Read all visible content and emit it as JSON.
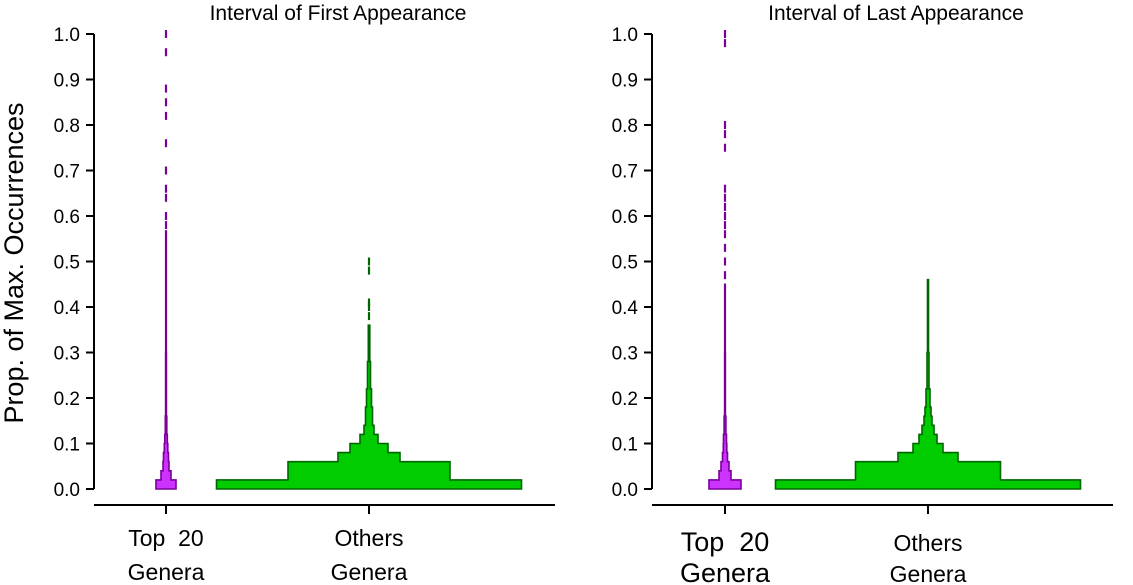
{
  "figure": {
    "ylabel": "Prop. of Max. Occurrences"
  },
  "chart_data": [
    {
      "type": "violin-histogram",
      "title": "Interval of First Appearance",
      "ylim": [
        0,
        1.0
      ],
      "yticks": [
        "0.0",
        "0.1",
        "0.2",
        "0.3",
        "0.4",
        "0.5",
        "0.6",
        "0.7",
        "0.8",
        "0.9",
        "1.0"
      ],
      "categories": [
        {
          "name": "Top 20 Genera",
          "label_lines": [
            "Top  20",
            "Genera"
          ],
          "color": "#cc33ff",
          "line_color": "#7a0099",
          "bins": [
            {
              "lo": 0.0,
              "hi": 0.02,
              "w": 0.2
            },
            {
              "lo": 0.02,
              "hi": 0.04,
              "w": 0.1
            },
            {
              "lo": 0.04,
              "hi": 0.06,
              "w": 0.06
            },
            {
              "lo": 0.06,
              "hi": 0.08,
              "w": 0.05
            },
            {
              "lo": 0.08,
              "hi": 0.1,
              "w": 0.035
            },
            {
              "lo": 0.1,
              "hi": 0.12,
              "w": 0.025
            },
            {
              "lo": 0.12,
              "hi": 0.16,
              "w": 0.015
            },
            {
              "lo": 0.16,
              "hi": 0.3,
              "w": 0.008
            },
            {
              "lo": 0.3,
              "hi": 0.55,
              "w": 0.006
            }
          ],
          "points": [
            0.56,
            0.58,
            0.6,
            0.64,
            0.66,
            0.7,
            0.76,
            0.82,
            0.85,
            0.88,
            0.96,
            1.0
          ]
        },
        {
          "name": "Others Genera",
          "label_lines": [
            "Others",
            "Genera"
          ],
          "color": "#00cc00",
          "line_color": "#006600",
          "bins": [
            {
              "lo": 0.0,
              "hi": 0.02,
              "w": 3.05
            },
            {
              "lo": 0.02,
              "hi": 0.04,
              "w": 1.62
            },
            {
              "lo": 0.04,
              "hi": 0.06,
              "w": 1.62
            },
            {
              "lo": 0.06,
              "hi": 0.08,
              "w": 0.62
            },
            {
              "lo": 0.08,
              "hi": 0.1,
              "w": 0.38
            },
            {
              "lo": 0.1,
              "hi": 0.12,
              "w": 0.18
            },
            {
              "lo": 0.12,
              "hi": 0.14,
              "w": 0.1
            },
            {
              "lo": 0.14,
              "hi": 0.18,
              "w": 0.07
            },
            {
              "lo": 0.18,
              "hi": 0.22,
              "w": 0.05
            },
            {
              "lo": 0.22,
              "hi": 0.28,
              "w": 0.03
            },
            {
              "lo": 0.28,
              "hi": 0.36,
              "w": 0.015
            }
          ],
          "points": [
            0.38,
            0.4,
            0.41,
            0.48,
            0.5
          ]
        }
      ]
    },
    {
      "type": "violin-histogram",
      "title": "Interval of Last Appearance",
      "ylim": [
        0,
        1.0
      ],
      "yticks": [
        "0.0",
        "0.1",
        "0.2",
        "0.3",
        "0.4",
        "0.5",
        "0.6",
        "0.7",
        "0.8",
        "0.9",
        "1.0"
      ],
      "categories": [
        {
          "name": "Top 20 Genera",
          "label_lines": [
            "Top  20",
            "Genera"
          ],
          "color": "#cc33ff",
          "line_color": "#7a0099",
          "bins": [
            {
              "lo": 0.0,
              "hi": 0.02,
              "w": 0.32
            },
            {
              "lo": 0.02,
              "hi": 0.04,
              "w": 0.12
            },
            {
              "lo": 0.04,
              "hi": 0.06,
              "w": 0.08
            },
            {
              "lo": 0.06,
              "hi": 0.08,
              "w": 0.05
            },
            {
              "lo": 0.08,
              "hi": 0.1,
              "w": 0.035
            },
            {
              "lo": 0.1,
              "hi": 0.12,
              "w": 0.03
            },
            {
              "lo": 0.12,
              "hi": 0.16,
              "w": 0.018
            },
            {
              "lo": 0.16,
              "hi": 0.3,
              "w": 0.008
            },
            {
              "lo": 0.3,
              "hi": 0.45,
              "w": 0.006
            }
          ],
          "points": [
            0.47,
            0.5,
            0.53,
            0.56,
            0.58,
            0.6,
            0.62,
            0.64,
            0.66,
            0.75,
            0.78,
            0.8,
            0.98,
            1.0
          ]
        },
        {
          "name": "Others Genera",
          "label_lines": [
            "Others",
            "Genera"
          ],
          "color": "#00cc00",
          "line_color": "#006600",
          "bins": [
            {
              "lo": 0.0,
              "hi": 0.02,
              "w": 3.05
            },
            {
              "lo": 0.02,
              "hi": 0.04,
              "w": 1.45
            },
            {
              "lo": 0.04,
              "hi": 0.06,
              "w": 1.45
            },
            {
              "lo": 0.06,
              "hi": 0.08,
              "w": 0.6
            },
            {
              "lo": 0.08,
              "hi": 0.1,
              "w": 0.3
            },
            {
              "lo": 0.1,
              "hi": 0.12,
              "w": 0.18
            },
            {
              "lo": 0.12,
              "hi": 0.14,
              "w": 0.12
            },
            {
              "lo": 0.14,
              "hi": 0.16,
              "w": 0.08
            },
            {
              "lo": 0.16,
              "hi": 0.18,
              "w": 0.06
            },
            {
              "lo": 0.18,
              "hi": 0.22,
              "w": 0.04
            },
            {
              "lo": 0.22,
              "hi": 0.3,
              "w": 0.02
            },
            {
              "lo": 0.3,
              "hi": 0.46,
              "w": 0.01
            }
          ],
          "points": []
        }
      ]
    }
  ]
}
